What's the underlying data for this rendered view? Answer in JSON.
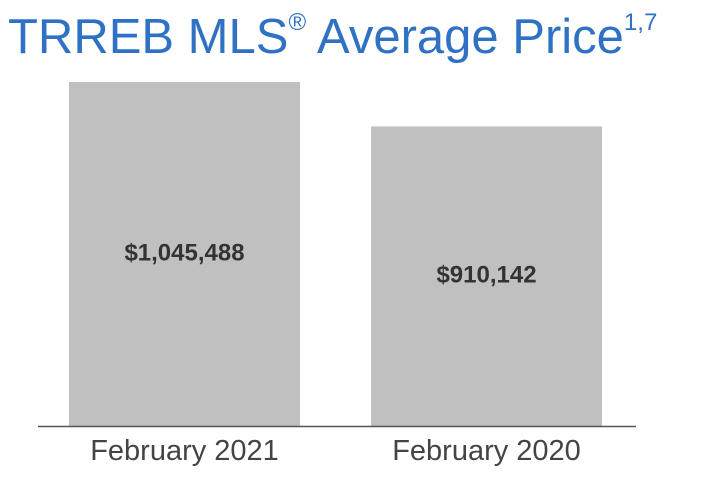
{
  "chart_data": {
    "type": "bar",
    "title": "TRREB MLS",
    "title_symbol": "®",
    "title_main": "Average Price",
    "title_superscript": "1,7",
    "categories": [
      "February 2021",
      "February 2020"
    ],
    "values": [
      1045488,
      910142
    ],
    "value_labels": [
      "$1,045,488",
      "$910,142"
    ],
    "bar_color": "#c0c0c0",
    "title_color": "#2f72c4",
    "ylim": [
      0,
      1100000
    ],
    "grid": false,
    "legend": "none"
  }
}
